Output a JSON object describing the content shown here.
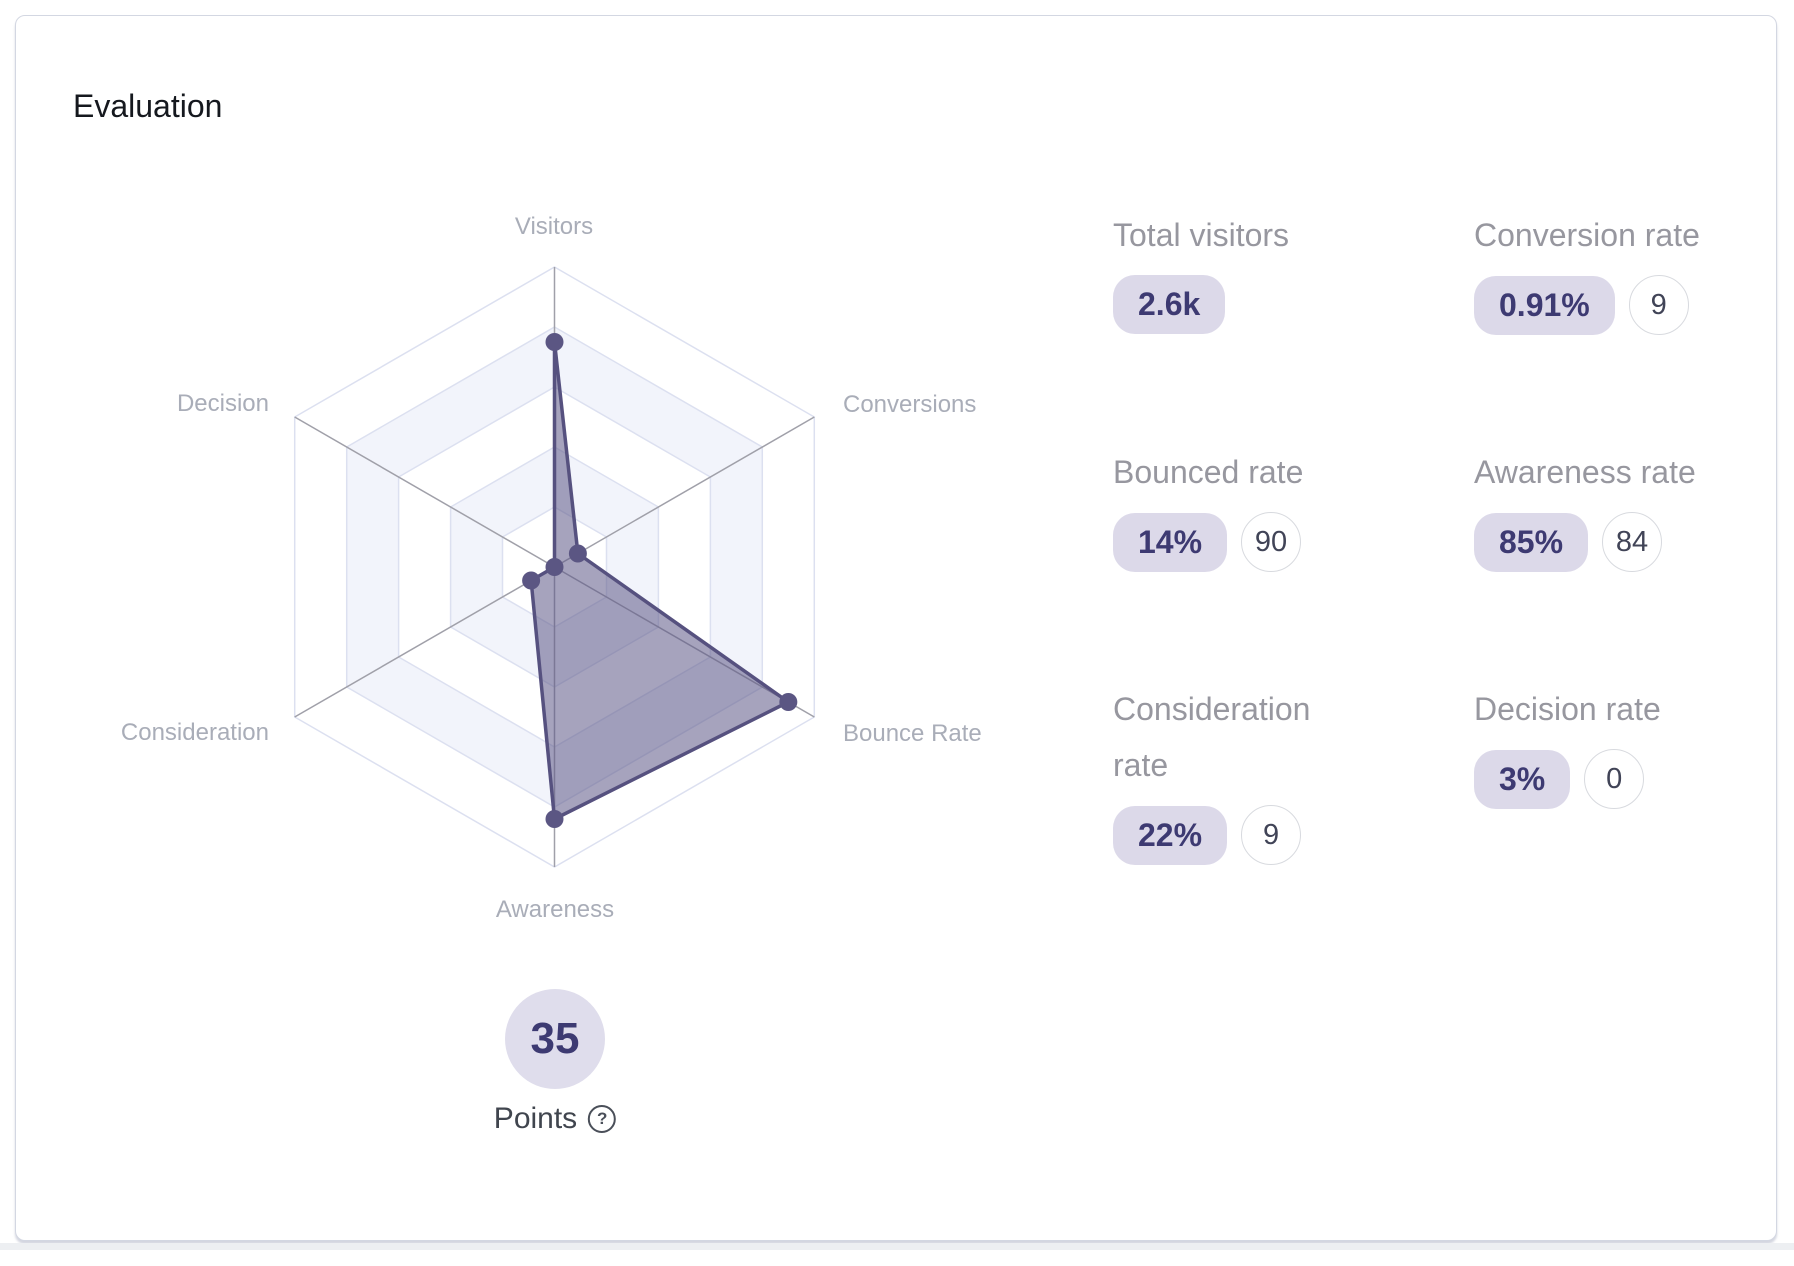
{
  "card": {
    "title": "Evaluation"
  },
  "chart_data": {
    "type": "radar",
    "categories": [
      "Visitors",
      "Conversions",
      "Bounce Rate",
      "Awareness",
      "Consideration",
      "Decision"
    ],
    "values": [
      75,
      9,
      90,
      84,
      9,
      0
    ],
    "max": 100,
    "rings": 5,
    "ring_step": 20,
    "grid": "alternating-bands, no tick labels, 3 grey diagonal spokes",
    "legend": "none",
    "colors": {
      "band": "#f2f4fb",
      "band_alt": "#ffffff",
      "ring_line": "#dce0f0",
      "spoke": "#a0a0a9",
      "series_fill": "rgba(92,87,134,0.55)",
      "series_stroke": "#56517f",
      "dot": "#5b5683"
    }
  },
  "points": {
    "value": "35",
    "label": "Points",
    "help_icon": "?"
  },
  "stats": {
    "total_visitors": {
      "label": "Total visitors",
      "badge": "2.6k",
      "score": ""
    },
    "conversion_rate": {
      "label": "Conversion rate",
      "badge": "0.91%",
      "score": "9"
    },
    "bounced_rate": {
      "label": "Bounced rate",
      "badge": "14%",
      "score": "90"
    },
    "awareness_rate": {
      "label": "Awareness rate",
      "badge": "85%",
      "score": "84"
    },
    "consideration_rate": {
      "label": "Consideration rate",
      "badge": "22%",
      "score": "9"
    },
    "decision_rate": {
      "label": "Decision rate",
      "badge": "3%",
      "score": "0"
    }
  },
  "theme": {
    "accent_text": "#3d3a72",
    "pill_bg": "#dcd9e9",
    "points_circle_bg": "#dfddec",
    "label_grey": "#97979f",
    "radar_label_grey": "#a9adb8",
    "card_border": "#d3d7e2",
    "page_strip": "#edeff2"
  }
}
